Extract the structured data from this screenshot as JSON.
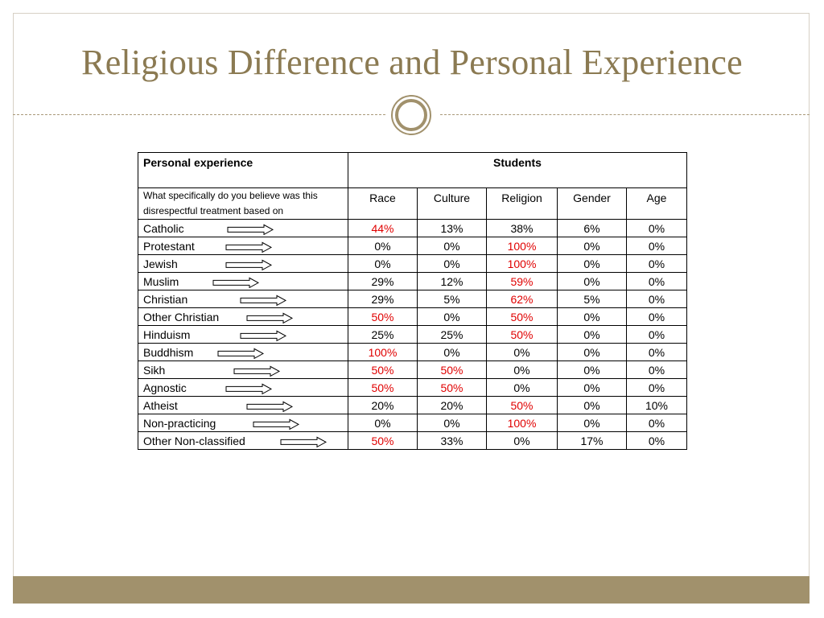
{
  "title": "Religious Difference and Personal Experience",
  "table": {
    "header_left": "Personal experience",
    "header_right": "Students",
    "subheader_left": "What specifically do you believe was this disrespectful treatment based on",
    "columns": [
      "Race",
      "Culture",
      "Religion",
      "Gender",
      "Age"
    ],
    "rows": [
      {
        "label": "Catholic",
        "values": [
          "44%",
          "13%",
          "38%",
          "6%",
          "0%"
        ],
        "highlight": [
          0
        ]
      },
      {
        "label": "Protestant",
        "values": [
          "0%",
          "0%",
          "100%",
          "0%",
          "0%"
        ],
        "highlight": [
          2
        ]
      },
      {
        "label": "Jewish",
        "values": [
          "0%",
          "0%",
          "100%",
          "0%",
          "0%"
        ],
        "highlight": [
          2
        ]
      },
      {
        "label": "Muslim",
        "values": [
          "29%",
          "12%",
          "59%",
          "0%",
          "0%"
        ],
        "highlight": [
          2
        ]
      },
      {
        "label": "Christian",
        "values": [
          "29%",
          "5%",
          "62%",
          "5%",
          "0%"
        ],
        "highlight": [
          2
        ]
      },
      {
        "label": "Other Christian",
        "values": [
          "50%",
          "0%",
          "50%",
          "0%",
          "0%"
        ],
        "highlight": [
          0,
          2
        ]
      },
      {
        "label": "Hinduism",
        "values": [
          "25%",
          "25%",
          "50%",
          "0%",
          "0%"
        ],
        "highlight": [
          2
        ]
      },
      {
        "label": "Buddhism",
        "values": [
          "100%",
          "0%",
          "0%",
          "0%",
          "0%"
        ],
        "highlight": [
          0
        ]
      },
      {
        "label": "Sikh",
        "values": [
          "50%",
          "50%",
          "0%",
          "0%",
          "0%"
        ],
        "highlight": [
          0,
          1
        ]
      },
      {
        "label": "Agnostic",
        "values": [
          "50%",
          "50%",
          "0%",
          "0%",
          "0%"
        ],
        "highlight": [
          0,
          1
        ]
      },
      {
        "label": "Atheist",
        "values": [
          "20%",
          "20%",
          "50%",
          "0%",
          "10%"
        ],
        "highlight": [
          2
        ]
      },
      {
        "label": "Non-practicing",
        "values": [
          "0%",
          "0%",
          "100%",
          "0%",
          "0%"
        ],
        "highlight": [
          2
        ]
      },
      {
        "label": "Other Non-classified",
        "values": [
          "50%",
          "33%",
          "0%",
          "17%",
          "0%"
        ],
        "highlight": [
          0
        ]
      }
    ]
  },
  "colors": {
    "title": "#8b7a52",
    "highlight": "#e00000",
    "footer": "#a1916c"
  },
  "icons": [
    "right-arrow-icon",
    "circle-ornament-icon"
  ]
}
